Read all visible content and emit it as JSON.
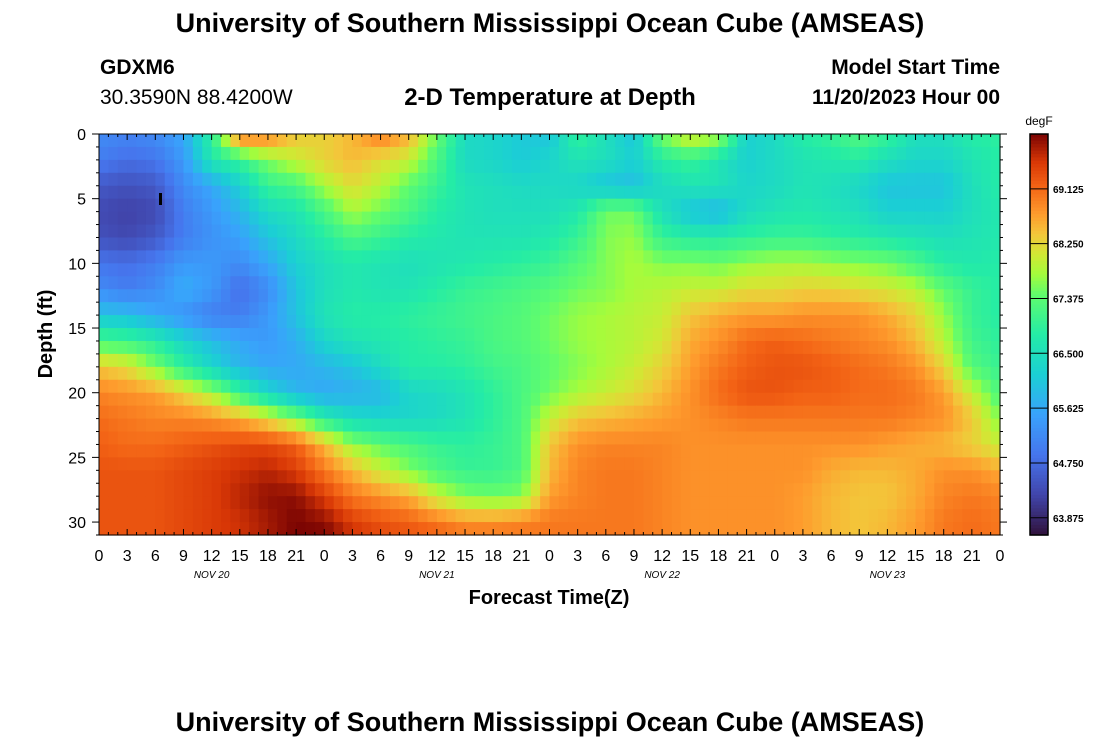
{
  "header": {
    "title": "University of Southern Mississippi Ocean Cube (AMSEAS)",
    "station": "GDXM6",
    "coordinates": "30.3590N  88.4200W",
    "subtitle": "2-D Temperature at Depth",
    "model_start_label": "Model Start Time",
    "model_start_value": "11/20/2023 Hour 00"
  },
  "footer": {
    "title": "University of Southern Mississippi Ocean Cube (AMSEAS)"
  },
  "chart_data": {
    "type": "heatmap",
    "title": "2-D Temperature at Depth",
    "xlabel": "Forecast Time(Z)",
    "ylabel": "Depth (ft)",
    "x_tick_labels": [
      "0",
      "3",
      "6",
      "9",
      "12",
      "15",
      "18",
      "21",
      "0",
      "3",
      "6",
      "9",
      "12",
      "15",
      "18",
      "21",
      "0",
      "3",
      "6",
      "9",
      "12",
      "15",
      "18",
      "21",
      "0",
      "3",
      "6",
      "9",
      "12",
      "15",
      "18",
      "21",
      "0"
    ],
    "x_day_labels": [
      "NOV 20",
      "NOV 21",
      "NOV 22",
      "NOV 23"
    ],
    "x_hours": [
      0,
      3,
      6,
      9,
      12,
      15,
      18,
      21,
      24,
      27,
      30,
      33,
      36,
      39,
      42,
      45,
      48,
      51,
      54,
      57,
      60,
      63,
      66,
      69,
      72,
      75,
      78,
      81,
      84,
      87,
      90,
      93,
      96
    ],
    "xlim": [
      0,
      96
    ],
    "y_ticks": [
      0,
      5,
      10,
      15,
      20,
      25,
      30
    ],
    "ylim": [
      0,
      31
    ],
    "y_inverted": true,
    "depths": [
      0,
      2,
      4,
      6,
      8,
      10,
      12,
      14,
      16,
      18,
      20,
      22,
      24,
      26,
      28,
      30,
      31
    ],
    "temperature_degF": [
      [
        65.2,
        65.1,
        65.2,
        65.6,
        66.9,
        69.2,
        69.0,
        68.4,
        68.3,
        68.5,
        69.0,
        68.6,
        67.5,
        66.4,
        66.3,
        66.1,
        66.0,
        67.0,
        66.5,
        66.0,
        67.6,
        68.2,
        67.9,
        66.2,
        66.4,
        66.8,
        67.0,
        67.3,
        67.0,
        66.5,
        66.5,
        66.8,
        66.9
      ],
      [
        65.0,
        64.8,
        64.9,
        65.4,
        66.7,
        67.0,
        67.6,
        68.0,
        68.3,
        68.5,
        68.2,
        68.0,
        67.2,
        66.4,
        66.3,
        66.1,
        66.3,
        66.6,
        66.5,
        66.2,
        66.8,
        67.0,
        66.6,
        66.2,
        66.4,
        66.6,
        66.7,
        66.8,
        66.5,
        66.3,
        66.3,
        66.6,
        66.8
      ],
      [
        64.5,
        64.4,
        64.5,
        65.2,
        65.6,
        66.2,
        67.0,
        67.2,
        67.8,
        68.2,
        67.9,
        67.4,
        67.0,
        66.6,
        66.5,
        66.4,
        66.4,
        66.3,
        66.0,
        65.9,
        66.4,
        66.6,
        66.6,
        66.3,
        66.4,
        66.6,
        66.5,
        66.3,
        66.0,
        66.0,
        66.0,
        66.5,
        66.8
      ],
      [
        64.3,
        64.2,
        64.3,
        65.0,
        65.4,
        65.8,
        66.4,
        66.6,
        67.2,
        67.8,
        67.5,
        67.2,
        66.8,
        66.6,
        66.5,
        66.5,
        66.5,
        66.7,
        67.5,
        67.5,
        66.5,
        66.0,
        65.8,
        66.4,
        66.6,
        66.7,
        66.6,
        66.5,
        66.2,
        66.2,
        66.2,
        66.5,
        66.7
      ],
      [
        64.4,
        64.3,
        64.5,
        65.0,
        65.3,
        65.5,
        66.0,
        66.4,
        66.8,
        67.2,
        67.0,
        66.8,
        66.7,
        66.6,
        66.6,
        66.6,
        66.7,
        67.0,
        67.6,
        67.7,
        67.0,
        66.8,
        66.8,
        66.9,
        67.0,
        67.0,
        66.9,
        66.8,
        66.7,
        66.6,
        66.5,
        66.6,
        66.7
      ],
      [
        64.9,
        64.8,
        65.0,
        65.4,
        65.4,
        65.2,
        65.6,
        66.2,
        66.5,
        66.7,
        66.6,
        66.5,
        66.6,
        66.7,
        66.8,
        66.9,
        67.0,
        67.3,
        67.6,
        67.8,
        67.6,
        67.6,
        67.5,
        67.7,
        67.8,
        67.8,
        67.7,
        67.6,
        67.5,
        67.2,
        66.8,
        66.7,
        66.8
      ],
      [
        65.2,
        65.0,
        65.2,
        65.7,
        65.4,
        64.8,
        65.2,
        66.0,
        66.5,
        66.7,
        66.6,
        66.6,
        66.8,
        67.0,
        67.1,
        67.2,
        67.3,
        67.5,
        67.6,
        67.8,
        67.9,
        68.0,
        68.0,
        68.2,
        68.2,
        68.3,
        68.3,
        68.2,
        68.1,
        67.9,
        67.4,
        67.0,
        66.8
      ],
      [
        66.0,
        65.9,
        65.6,
        65.3,
        65.0,
        65.0,
        65.4,
        66.0,
        66.6,
        66.8,
        66.8,
        66.9,
        67.0,
        67.1,
        67.2,
        67.3,
        67.5,
        67.7,
        67.8,
        67.9,
        68.0,
        68.4,
        68.6,
        68.7,
        68.7,
        68.8,
        68.8,
        68.8,
        68.6,
        68.3,
        67.7,
        67.0,
        66.8
      ],
      [
        67.2,
        67.1,
        66.8,
        66.3,
        65.9,
        65.6,
        65.4,
        65.7,
        66.3,
        66.6,
        66.7,
        66.8,
        66.9,
        67.0,
        67.2,
        67.3,
        67.5,
        67.7,
        67.8,
        67.9,
        68.1,
        68.6,
        68.8,
        69.1,
        69.2,
        69.1,
        69.0,
        68.9,
        68.8,
        68.5,
        67.9,
        67.1,
        66.9
      ],
      [
        68.4,
        68.2,
        67.6,
        66.9,
        66.3,
        65.8,
        65.6,
        65.6,
        65.8,
        66.0,
        66.4,
        66.8,
        66.8,
        66.9,
        67.1,
        67.2,
        67.4,
        67.6,
        67.8,
        68.0,
        68.3,
        68.7,
        69.0,
        69.2,
        69.3,
        69.3,
        69.2,
        69.1,
        69.0,
        68.8,
        68.3,
        67.3,
        67.0
      ],
      [
        68.9,
        68.8,
        68.7,
        68.3,
        67.8,
        67.0,
        66.3,
        65.8,
        65.6,
        65.7,
        65.8,
        66.3,
        66.4,
        66.6,
        66.9,
        67.2,
        67.5,
        67.8,
        68.0,
        68.2,
        68.5,
        68.8,
        69.1,
        69.3,
        69.3,
        69.2,
        69.2,
        69.1,
        69.1,
        69.0,
        68.7,
        68.0,
        67.2
      ],
      [
        69.1,
        69.0,
        68.9,
        68.9,
        68.8,
        68.6,
        68.2,
        67.6,
        66.8,
        66.4,
        66.3,
        66.3,
        66.4,
        66.6,
        66.9,
        67.2,
        68.0,
        68.4,
        68.5,
        68.6,
        68.7,
        68.8,
        68.9,
        69.0,
        69.0,
        69.0,
        69.0,
        69.0,
        69.0,
        68.9,
        68.8,
        68.4,
        67.6
      ],
      [
        69.2,
        69.1,
        69.1,
        69.2,
        69.3,
        69.4,
        69.4,
        69.2,
        68.5,
        67.7,
        67.4,
        67.2,
        67.0,
        66.9,
        67.0,
        67.2,
        68.4,
        68.8,
        68.9,
        68.9,
        68.9,
        68.8,
        68.8,
        68.8,
        68.8,
        68.8,
        68.8,
        68.8,
        68.7,
        68.6,
        68.5,
        68.3,
        68.0
      ],
      [
        69.3,
        69.3,
        69.3,
        69.4,
        69.5,
        69.6,
        69.7,
        69.5,
        69.0,
        68.5,
        68.0,
        67.6,
        67.2,
        67.0,
        67.0,
        67.2,
        68.5,
        68.9,
        69.0,
        69.0,
        68.9,
        68.8,
        68.8,
        68.8,
        68.8,
        68.8,
        68.6,
        68.5,
        68.5,
        68.6,
        68.8,
        68.8,
        68.6
      ],
      [
        69.3,
        69.3,
        69.3,
        69.4,
        69.5,
        69.7,
        69.9,
        69.9,
        69.5,
        69.0,
        68.8,
        68.6,
        68.0,
        67.6,
        67.5,
        67.6,
        68.7,
        68.9,
        69.0,
        69.0,
        68.9,
        68.8,
        68.8,
        68.8,
        68.8,
        68.7,
        68.5,
        68.4,
        68.4,
        68.6,
        68.9,
        69.0,
        68.9
      ],
      [
        69.3,
        69.3,
        69.3,
        69.4,
        69.5,
        69.6,
        69.8,
        70.0,
        69.9,
        69.5,
        69.3,
        69.2,
        69.0,
        68.8,
        68.8,
        68.9,
        69.0,
        69.0,
        69.0,
        69.0,
        68.9,
        68.8,
        68.8,
        68.8,
        68.8,
        68.7,
        68.5,
        68.4,
        68.5,
        68.7,
        69.0,
        69.1,
        69.0
      ],
      [
        69.3,
        69.3,
        69.3,
        69.4,
        69.5,
        69.6,
        69.8,
        70.0,
        70.0,
        69.6,
        69.4,
        69.3,
        69.2,
        69.0,
        69.0,
        69.0,
        69.0,
        69.0,
        69.0,
        69.0,
        68.9,
        68.8,
        68.8,
        68.8,
        68.8,
        68.7,
        68.5,
        68.4,
        68.5,
        68.7,
        69.0,
        69.1,
        69.0
      ]
    ],
    "colorbar": {
      "unit": "degF",
      "ticks": [
        "69.125",
        "68.250",
        "67.375",
        "66.500",
        "65.625",
        "64.750",
        "63.875"
      ],
      "min": 63.6,
      "max": 70.0
    }
  }
}
